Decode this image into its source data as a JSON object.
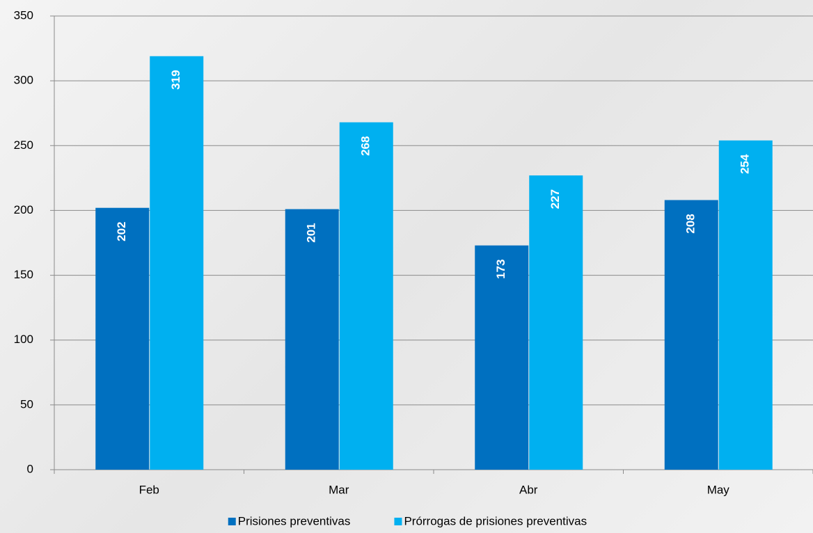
{
  "chart_data": {
    "type": "bar",
    "categories": [
      "Feb",
      "Mar",
      "Abr",
      "May"
    ],
    "series": [
      {
        "name": "Prisiones preventivas",
        "color": "#0070c0",
        "values": [
          202,
          201,
          173,
          208
        ]
      },
      {
        "name": "Prórrogas de prisiones preventivas",
        "color": "#00b0f0",
        "values": [
          319,
          268,
          227,
          254
        ]
      }
    ],
    "ylim": [
      0,
      350
    ],
    "yticks": [
      0,
      50,
      100,
      150,
      200,
      250,
      300,
      350
    ],
    "grid": true,
    "legend": "bottom"
  }
}
